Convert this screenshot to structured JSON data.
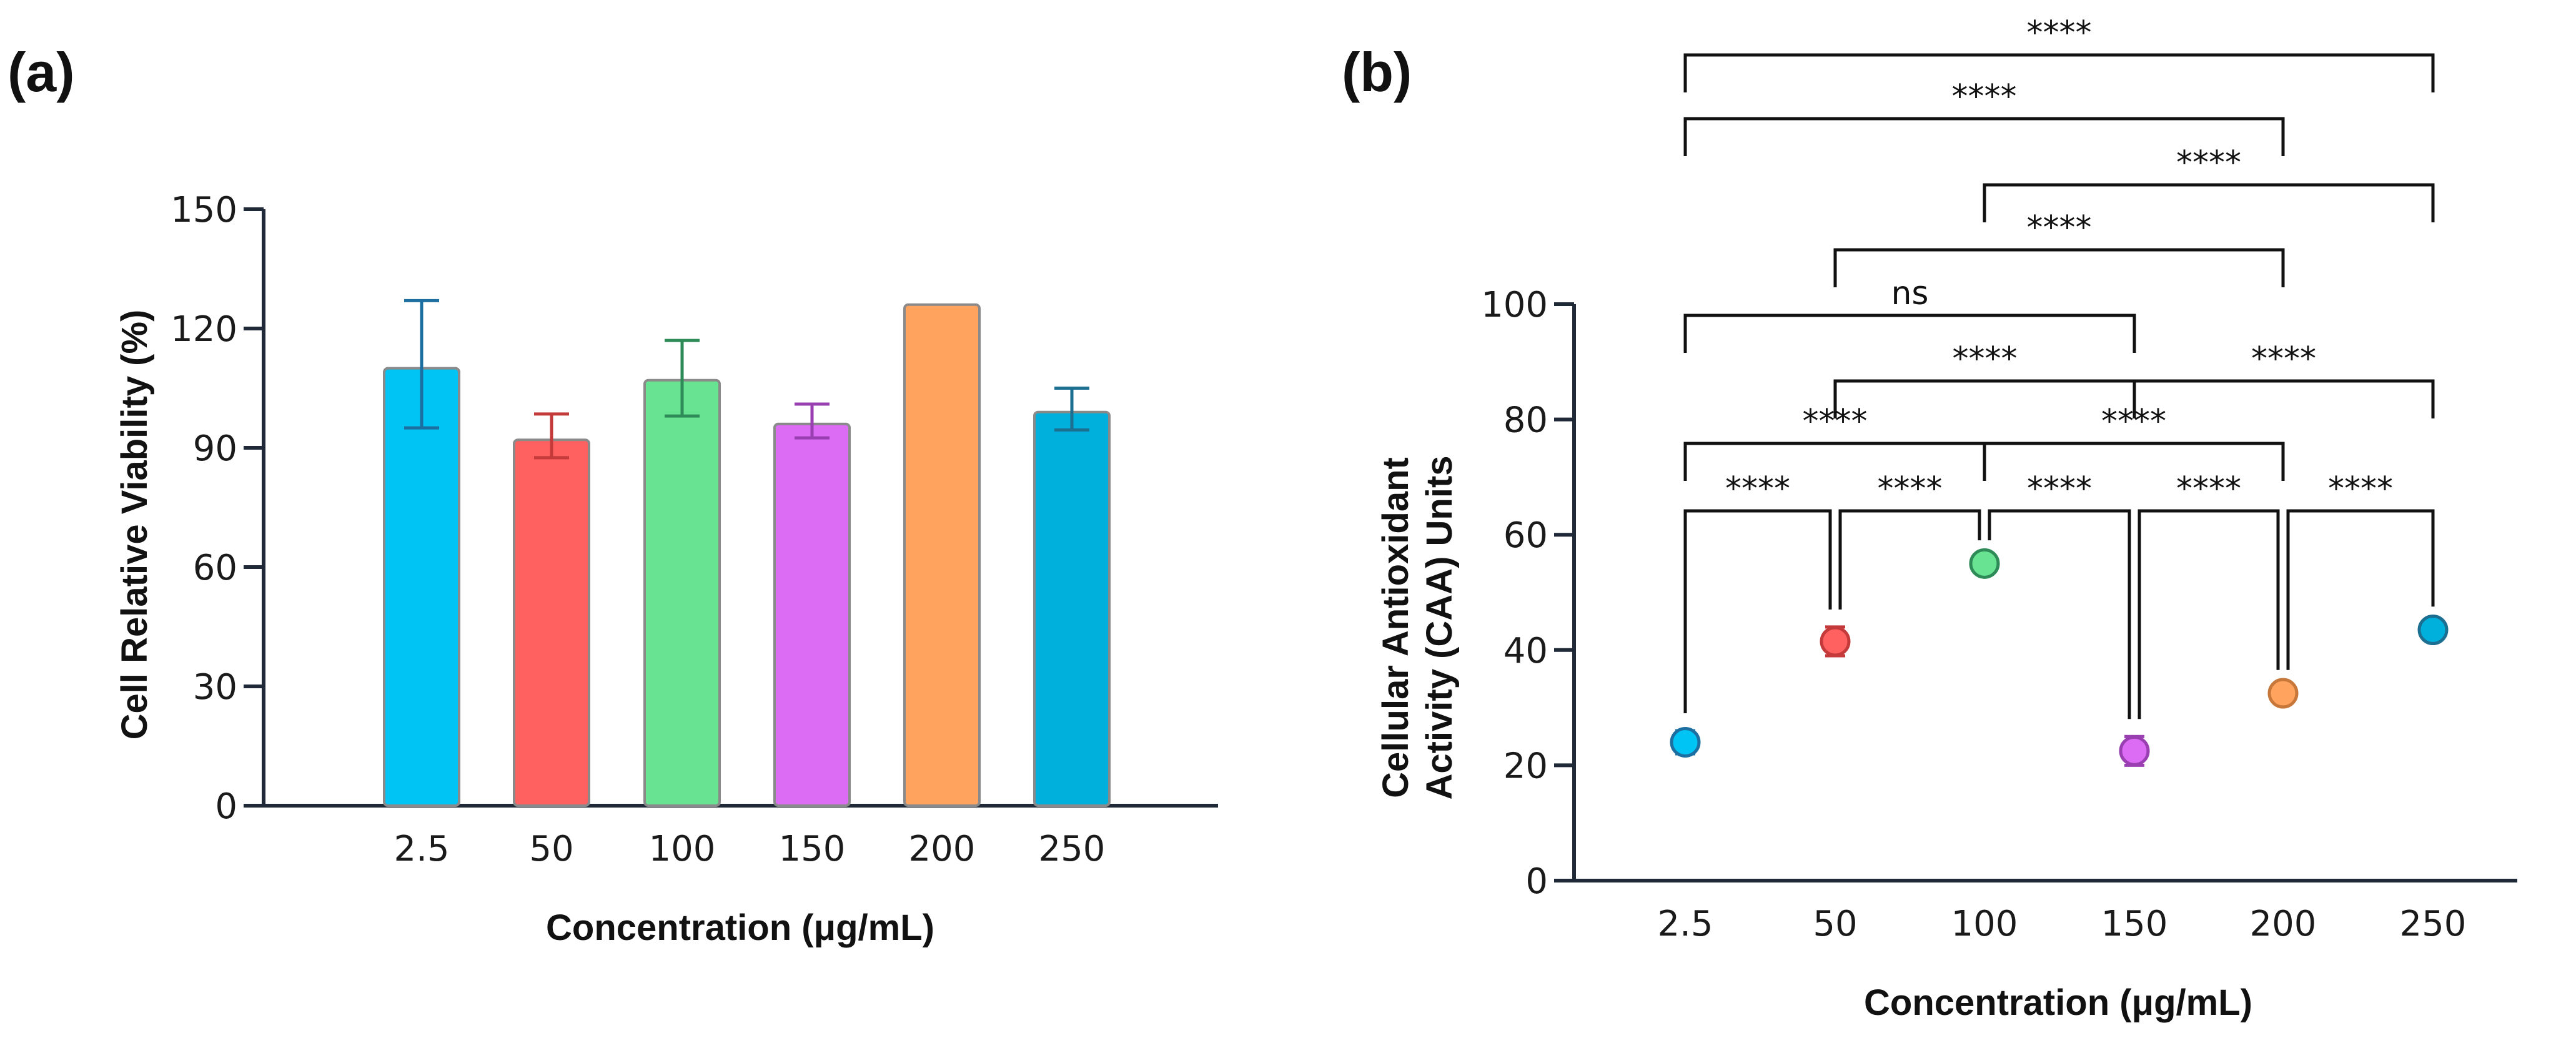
{
  "chart_data": [
    {
      "panel": "(a)",
      "type": "bar",
      "xlabel": "Concentration (μg/mL)",
      "ylabel": "Cell Relative Viability (%)",
      "ylim": [
        0,
        150
      ],
      "yticks": [
        "0",
        "30",
        "60",
        "90",
        "120",
        "150"
      ],
      "categories": [
        "2.5",
        "50",
        "100",
        "150",
        "200",
        "250"
      ],
      "values": [
        110,
        92,
        107,
        96,
        126,
        99
      ],
      "err_low": [
        95,
        87.5,
        98,
        92.5,
        null,
        94.5
      ],
      "err_high": [
        127,
        98.5,
        117,
        101,
        null,
        105
      ],
      "colors": [
        "#00c4f4",
        "#ff6060",
        "#68e392",
        "#dc6cf4",
        "#ffa35f",
        "#00b0dc"
      ],
      "edge_colors": [
        "#1c6fa0",
        "#c43a3a",
        "#2e8b57",
        "#9a3fb2",
        "#c7773a",
        "#1c6f90"
      ]
    },
    {
      "panel": "(b)",
      "type": "scatter",
      "xlabel": "Concentration (μg/mL)",
      "ylabel_line1": "Cellular Antioxidant",
      "ylabel_line2": "Activity (CAA) Units",
      "ylim": [
        0,
        100
      ],
      "yticks": [
        "0",
        "20",
        "40",
        "60",
        "80",
        "100"
      ],
      "categories": [
        "2.5",
        "50",
        "100",
        "150",
        "200",
        "250"
      ],
      "values": [
        24,
        41.5,
        55,
        22.5,
        32.5,
        43.5
      ],
      "err_low": [
        22,
        39,
        54,
        20,
        31.5,
        42.5
      ],
      "err_high": [
        26,
        44,
        56,
        25,
        33.5,
        44.5
      ],
      "colors": [
        "#00c4f4",
        "#ff6060",
        "#68e392",
        "#dc6cf4",
        "#ffa35f",
        "#00b0dc"
      ],
      "edge_colors": [
        "#1c6fa0",
        "#c43a3a",
        "#2e8b57",
        "#9a3fb2",
        "#c7773a",
        "#1c6f90"
      ],
      "comparisons": [
        {
          "from": "2.5",
          "to": "50",
          "label": "****"
        },
        {
          "from": "50",
          "to": "100",
          "label": "****"
        },
        {
          "from": "100",
          "to": "150",
          "label": "****"
        },
        {
          "from": "150",
          "to": "200",
          "label": "****"
        },
        {
          "from": "200",
          "to": "250",
          "label": "****"
        },
        {
          "from": "2.5",
          "to": "100",
          "label": "****"
        },
        {
          "from": "100",
          "to": "200",
          "label": "****"
        },
        {
          "from": "50",
          "to": "150",
          "label": "****"
        },
        {
          "from": "150",
          "to": "250",
          "label": "****"
        },
        {
          "from": "2.5",
          "to": "150",
          "label": "ns"
        },
        {
          "from": "50",
          "to": "200",
          "label": "****"
        },
        {
          "from": "100",
          "to": "250",
          "label": "****"
        },
        {
          "from": "2.5",
          "to": "200",
          "label": "****"
        },
        {
          "from": "2.5",
          "to": "250",
          "label": "****"
        }
      ]
    }
  ]
}
